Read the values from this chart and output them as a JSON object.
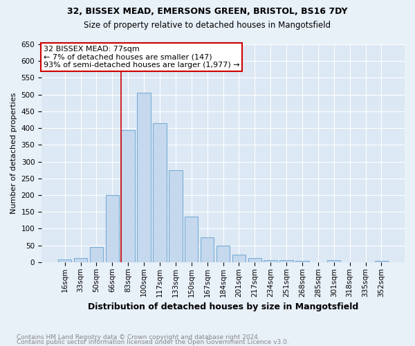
{
  "title": "32, BISSEX MEAD, EMERSONS GREEN, BRISTOL, BS16 7DY",
  "subtitle": "Size of property relative to detached houses in Mangotsfield",
  "xlabel": "Distribution of detached houses by size in Mangotsfield",
  "ylabel": "Number of detached properties",
  "footer1": "Contains HM Land Registry data © Crown copyright and database right 2024.",
  "footer2": "Contains public sector information licensed under the Open Government Licence v3.0.",
  "bin_labels": [
    "16sqm",
    "33sqm",
    "50sqm",
    "66sqm",
    "83sqm",
    "100sqm",
    "117sqm",
    "133sqm",
    "150sqm",
    "167sqm",
    "184sqm",
    "201sqm",
    "217sqm",
    "234sqm",
    "251sqm",
    "268sqm",
    "285sqm",
    "301sqm",
    "318sqm",
    "335sqm",
    "352sqm"
  ],
  "bar_values": [
    8,
    12,
    45,
    200,
    395,
    505,
    415,
    275,
    135,
    75,
    50,
    22,
    12,
    7,
    5,
    3,
    0,
    5,
    0,
    0,
    3
  ],
  "bar_color": "#c5d8ee",
  "bar_edge_color": "#7aaed4",
  "vline_color": "#cc0000",
  "vline_x_index": 4,
  "annotation_label": "32 BISSEX MEAD: 77sqm",
  "annotation_line1": "← 7% of detached houses are smaller (147)",
  "annotation_line2": "93% of semi-detached houses are larger (1,977) →",
  "annotation_border_color": "#cc0000",
  "ylim": [
    0,
    650
  ],
  "yticks": [
    0,
    50,
    100,
    150,
    200,
    250,
    300,
    350,
    400,
    450,
    500,
    550,
    600,
    650
  ],
  "background_color": "#e8f0f8",
  "plot_bg_color": "#dce8f4",
  "grid_color": "#ffffff",
  "title_fontsize": 9,
  "subtitle_fontsize": 8.5,
  "ylabel_fontsize": 8,
  "xlabel_fontsize": 9,
  "tick_fontsize": 7.5,
  "annotation_fontsize": 8,
  "footer_fontsize": 6.5,
  "footer_color": "#888888"
}
